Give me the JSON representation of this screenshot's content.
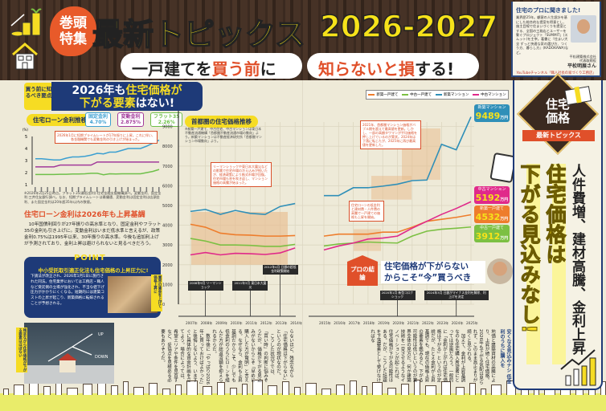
{
  "header": {
    "badge": "巻頭特集",
    "title": "最新トピックス",
    "subtitle_pre": "一戸建てを",
    "subtitle_em": "買う前",
    "subtitle_post": "に",
    "year": "2026-2027",
    "tagline_em": "知らないと損",
    "tagline_post": "する!"
  },
  "profile": {
    "title": "住宅のプロに聞きました!",
    "text": "業界歴25年。顧客の人生設計を基にした総合的な提案を得意とし、施主目線で住まいづくりを提案とする、全国の工務店とユーザーを繋ぐプロジェクト「SUMMIT」(スムット)を主宰。著書に『住まい大全 ずっと快適な家の選び方、つくり方、暮らし方』(KADOKAWA)など。",
    "affiliation": "平松建築株式会社 代表取締役",
    "name": "平松明展さん",
    "youtube": "YouTubeチャンネル「職人社長の家づくり工務店」",
    "url": "https://www.youtube.com/@hiramatsuakinobu"
  },
  "left": {
    "tag": "買う前に知るべき要点",
    "banner_l1_pre": "2026年も",
    "banner_l1_em": "住宅価格が",
    "banner_l2_em": "下がる要素",
    "banner_l2_post": "はない!",
    "rate_chart_title": "住宅ローン金利推移",
    "rate_callout": "2026年1月に短期プライムレートが17年振りに上昇。これに伴い、各金融機関でも変動金利の引き上げが始まった。",
    "rate_note": "※2026年2月25日時点。フラット35(最低金利):住宅金融支援機構調べ。変動金利、固定金利:三井住友銀行調べ。なお、短期プライムレートは最優遇、変動金利は固定金利は店頭金利、また固定金利は20年超35年以内の数値。",
    "heading": "住宅ローン金利は2026年も上昇基調",
    "paragraph": "10年国債利回りが27年振りの高水準となり、固定金利やフラット35の金利も引き上げに。変動金利はいまだ低水準と言えるが、政策金利0.75%は1995年以来、30年振りの高水準。今後も追加利上げが予測されており、金利上昇は避けられないと見るべきだろう。",
    "point_label": "POINT",
    "point_heading": "中小受託取引適正化法も住宅価格の上昇圧力に!",
    "point_body": "下請法が改正され、2026年1月1日に施行された同法。住宅業界においては工務店・職人など受託側の立場が強化され、不当な値下げ圧力がかかりにくくなる。短期的には建築コストの上昇が起こり、新築価格に転嫁されることが予想される。",
    "point_photo_tag": "業界の賃金を上げて価格上昇に",
    "photo_tag": "残念ながら住宅価格が下がる要素はほぼない",
    "photo_up": "UP",
    "photo_down": "DOWN",
    "body": "らないほど、残念ながら「住宅価格は下がらない」というのが現状なのだ。\n　こうした状況下では、「買い時」の判断に悩みそうだが、価格が下がる見込みがないからこそ「早めに購入した方が賢明」と言える。なぜなら、金利も上昇基調だからこそ、少しでも低金利のうちにローンを組んだ方が総返済額を抑えられるからだ。\n　数年後に「やっぱり2026年に買っておけばよかった」と後悔しないよう、いますぐに具体的な資金計画を立てよう。場合によっては、希望エリアや条件を見直すなど、妥協点を見極める必要もありそうだ。"
  },
  "rate_chart_data": {
    "type": "line",
    "yunit": "(%)",
    "ylim": [
      1,
      5
    ],
    "yticks": [
      1,
      2,
      3,
      4,
      5
    ],
    "series": [
      {
        "name": "固定金利",
        "value_label": "4.70%",
        "color": "#3b9fd1",
        "values": [
          3.15,
          3.15,
          3.1,
          3.05,
          3.05,
          3.2,
          3.3,
          3.3,
          3.35,
          3.45,
          3.6,
          3.55,
          3.7,
          3.7,
          3.85,
          4.0,
          4.0,
          4.0,
          4.2,
          4.45,
          4.7
        ]
      },
      {
        "name": "変動金利",
        "value_label": "2.875%",
        "color": "#a23a9a",
        "values": [
          2.475,
          2.475,
          2.475,
          2.475,
          2.625,
          2.625,
          2.625,
          2.625,
          2.625,
          2.625,
          2.875,
          2.875,
          2.875,
          2.875,
          2.875,
          2.875,
          2.875,
          2.875,
          2.875,
          2.875,
          2.875
        ]
      },
      {
        "name": "フラット35",
        "value_label": "2.26%",
        "color": "#6fc04a",
        "values": [
          1.84,
          1.84,
          1.84,
          1.84,
          1.86,
          1.86,
          1.88,
          1.88,
          1.9,
          1.94,
          1.94,
          1.82,
          1.9,
          1.88,
          1.9,
          1.9,
          1.9,
          1.9,
          2.0,
          2.1,
          2.26
        ]
      }
    ]
  },
  "chart_data": {
    "type": "line",
    "title": "首都圏の住宅価格推移",
    "note": "※新築一戸建て、中古住宅、中古マンションは東日本不動産流通機構「首都圏不動産流通市場の動向」より。新築マンションは不動産経済研究所「首都圏マンション市場動向」より。",
    "ylim": [
      0,
      9500
    ],
    "yticks": [
      0,
      1000,
      2000,
      3000,
      4000,
      5000,
      6000,
      7000,
      8000,
      9000
    ],
    "categories": [
      "2007年",
      "2008年",
      "2009年",
      "2010年",
      "2011年",
      "2012年",
      "2013年",
      "2014年",
      "2015年",
      "2016年",
      "2017年",
      "2018年",
      "2019年",
      "2020年",
      "2021年",
      "2022年",
      "2023年",
      "2024年",
      "2025年"
    ],
    "grid": true,
    "legend": "top",
    "unit": "万円",
    "series": [
      {
        "name": "新築一戸建て",
        "color": "#ee7d2c",
        "end_label": "4532",
        "values": [
          4050,
          3900,
          3600,
          3520,
          3500,
          3450,
          3450,
          3480,
          3450,
          3550,
          3550,
          3550,
          3650,
          3650,
          3900,
          4200,
          4300,
          4400,
          4532
        ]
      },
      {
        "name": "中古一戸建て",
        "color": "#7cc043",
        "end_label": "3912",
        "values": [
          3330,
          3200,
          3000,
          3000,
          2980,
          2930,
          2930,
          3030,
          2950,
          3050,
          3100,
          3150,
          3120,
          3100,
          3450,
          3700,
          3800,
          3850,
          3912
        ]
      },
      {
        "name": "新築マンション",
        "color": "#2f8fb8",
        "end_label": "9489",
        "values": [
          4700,
          4800,
          4550,
          4750,
          4600,
          4550,
          4950,
          5100,
          5500,
          5500,
          5900,
          5900,
          5980,
          6080,
          6260,
          6290,
          8100,
          7820,
          9489
        ]
      },
      {
        "name": "中古マンション",
        "color": "#e0298a",
        "end_label": "5192",
        "values": [
          2500,
          2620,
          2500,
          2580,
          2560,
          2520,
          2600,
          2850,
          2750,
          2950,
          3100,
          3300,
          3350,
          3450,
          3850,
          4200,
          4550,
          4850,
          5192
        ]
      }
    ],
    "events": [
      {
        "year": "2008年",
        "label": "2008年9月 リーマンショック"
      },
      {
        "year": "2011年",
        "label": "2011年3月 東日本大震災"
      },
      {
        "year": "2013年",
        "label": "2012年4月 日銀の超低金利政策開始"
      },
      {
        "year": "2020年",
        "label": "2020年1月 新型コロナショック"
      },
      {
        "year": "2024年",
        "label": "2024年3月 日銀がマイナス金利を解除、利上げを決定"
      }
    ],
    "callouts": [
      "リーマンショックや東日本大震災などの影響で住宅市場の冷え込みが続いたが、経済政策により株式市場が回復。住宅市場も息を吹き返し、マンション価格の高騰が始まった。",
      "2021年、首都圏マンション価格がバブル期を超えて最高値を更新。しかし、一部の高額タワマンが平均価格を押し上げているのが実状。2024年は下落に転じたが、2025年に再び最高値を更新した。",
      "住宅ローンの低金利と建材費・人件費の高騰で一戸建ての価格も上昇を開始。"
    ]
  },
  "conclusion": {
    "tag": "プロの結論",
    "text_l1": "住宅価格が下がらない",
    "text_l2": "からこそ“今”買うべき"
  },
  "right": {
    "diamond": "住宅価格",
    "ribbon": "最新トピックス",
    "head1": "人件費増、建材高騰、金利上昇",
    "head2": "住宅価格は",
    "head3": "下がる見込みなし!",
    "subhead": "安くなる見込みナシ 低金利のうちに購入を",
    "body": "地価と建築資材の高騰により、上昇が続く住宅価格。2026年も下がる気配は見られず、このまま高止まりが続くと見られる。\n　加えて、金利が上昇基調なのも住宅購入希望者にとっては逆風だろう。一般的に「金利が上がれば住宅価格は下がる」というのが定説だが、たとえ金利が上昇基調でも、現在の価格上昇の要素を鑑みると、下がる可能性は低いというのが業界全体の見方だ。何か建築技術を一変させるようなイノベーションが起これば、住宅価格が下がる可能性はある。だが、こうした話題を下落要素として挙げなければな"
  },
  "colors": {
    "navy": "#1e3a78",
    "yellow": "#f6dc23",
    "orange": "#e0502a",
    "wood": "#3b2a20"
  }
}
